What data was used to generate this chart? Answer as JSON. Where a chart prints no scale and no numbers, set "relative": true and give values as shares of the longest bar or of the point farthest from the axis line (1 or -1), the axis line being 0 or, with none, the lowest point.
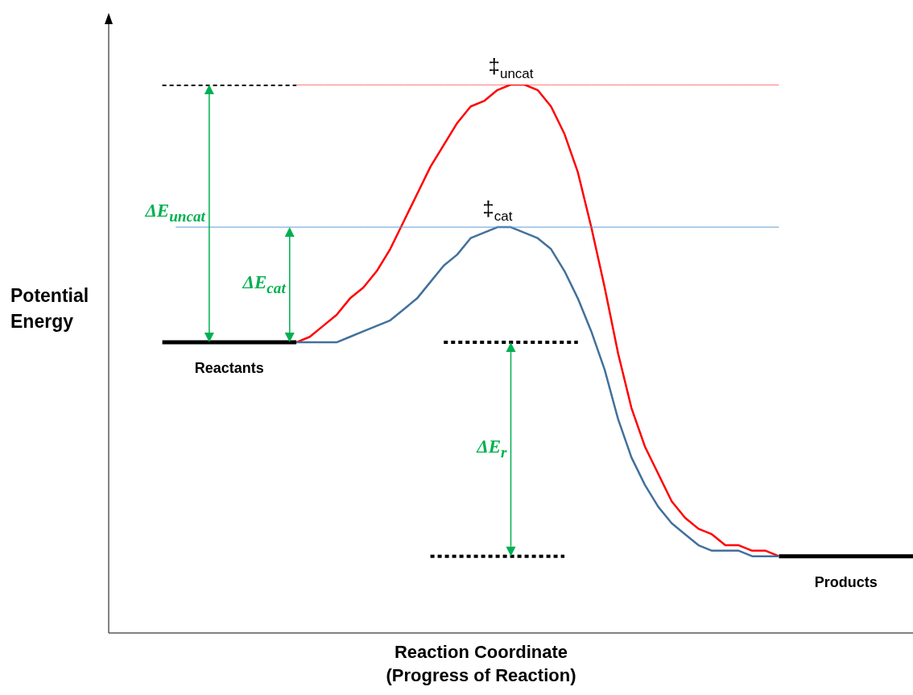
{
  "chart_data": {
    "type": "line",
    "relative": true,
    "xlabel": "Reaction Coordinate (Progress of Reaction)",
    "ylabel": "Potential Energy",
    "annotations": [
      "‡$_{uncat}$",
      "‡$_{cat}$",
      "ΔE$_{uncat}$",
      "ΔE$_{cat}$",
      "ΔE$_{r}$"
    ],
    "categories": [
      null,
      null,
      null,
      null,
      null,
      null,
      null,
      null,
      null,
      null,
      null,
      null,
      null,
      null,
      null,
      null,
      null,
      null,
      null,
      null,
      null,
      null,
      null,
      null,
      null,
      null,
      null,
      null,
      null,
      null,
      null,
      null,
      null,
      null,
      null,
      null,
      null,
      null,
      null,
      null,
      null,
      null,
      null,
      null,
      null,
      null,
      null,
      null,
      null,
      null,
      null,
      null,
      null,
      null,
      null,
      null,
      null,
      null,
      null,
      null,
      null
    ],
    "legend": false,
    "grid": false,
    "marker": "none",
    "line_style": "solid",
    "series": [
      {
        "name": "Reactants",
        "color": "#000000",
        "values": [
          null,
          null,
          null,
          null,
          0.53,
          0.53,
          0.53,
          0.53,
          0.53,
          0.53,
          0.53,
          0.53,
          0.53,
          0.53,
          0.53,
          null,
          null,
          null,
          null,
          null,
          null,
          null,
          null,
          null,
          null,
          null,
          null,
          null,
          null,
          null,
          null,
          null,
          null,
          null,
          null,
          null,
          null,
          null,
          null,
          null,
          null,
          null,
          null,
          null,
          null,
          null,
          null,
          null,
          null,
          null,
          null,
          null,
          null,
          null,
          null,
          null,
          null,
          null,
          null,
          null,
          null
        ]
      },
      {
        "name": "Products",
        "color": "#000000",
        "values": [
          null,
          null,
          null,
          null,
          null,
          null,
          null,
          null,
          null,
          null,
          null,
          null,
          null,
          null,
          null,
          null,
          null,
          null,
          null,
          null,
          null,
          null,
          null,
          null,
          null,
          null,
          null,
          null,
          null,
          null,
          null,
          null,
          null,
          null,
          null,
          null,
          null,
          null,
          null,
          null,
          null,
          null,
          null,
          null,
          null,
          null,
          null,
          null,
          null,
          null,
          0.14,
          0.14,
          0.14,
          0.14,
          0.14,
          0.14,
          0.14,
          0.14,
          0.14,
          0.14,
          0.14
        ]
      },
      {
        "color": "#ff0000",
        "values": [
          null,
          null,
          null,
          null,
          null,
          null,
          null,
          null,
          null,
          null,
          null,
          null,
          null,
          null,
          0.53,
          0.54,
          0.56,
          0.58,
          0.61,
          0.63,
          0.66,
          0.7,
          0.75,
          0.8,
          0.85,
          0.89,
          0.93,
          0.96,
          0.97,
          0.99,
          1,
          1,
          0.99,
          0.96,
          0.91,
          0.84,
          0.74,
          0.63,
          0.51,
          0.41,
          0.34,
          0.29,
          0.24,
          0.21,
          0.19,
          0.18,
          0.16,
          0.16,
          0.15,
          0.15,
          0.14,
          null,
          null,
          null,
          null,
          null,
          null,
          null,
          null,
          null,
          null
        ]
      },
      {
        "color": "#41719c",
        "values": [
          null,
          null,
          null,
          null,
          null,
          null,
          null,
          null,
          null,
          null,
          null,
          null,
          null,
          null,
          0.53,
          0.53,
          0.53,
          0.53,
          0.54,
          0.55,
          0.56,
          0.57,
          0.59,
          0.61,
          0.64,
          0.67,
          0.69,
          0.72,
          0.73,
          0.74,
          0.74,
          0.73,
          0.72,
          0.7,
          0.66,
          0.61,
          0.55,
          0.48,
          0.39,
          0.32,
          0.27,
          0.23,
          0.2,
          0.18,
          0.16,
          0.15,
          0.15,
          0.15,
          0.14,
          0.14,
          0.14,
          null,
          null,
          null,
          null,
          null,
          null,
          null,
          null,
          null,
          null
        ]
      },
      {
        "color": "#ff0000",
        "values": [
          null,
          null,
          null,
          null,
          null,
          null,
          null,
          null,
          null,
          null,
          null,
          null,
          null,
          null,
          1,
          1,
          1,
          1,
          1,
          1,
          1,
          1,
          1,
          1,
          1,
          1,
          1,
          1,
          1,
          1,
          1,
          1,
          1,
          1,
          1,
          1,
          1,
          1,
          1,
          1,
          1,
          1,
          1,
          1,
          1,
          1,
          1,
          1,
          1,
          1,
          1,
          null,
          null,
          null,
          null,
          null,
          null,
          null,
          null,
          null,
          null
        ]
      },
      {
        "color": "#5b9bd5",
        "values": [
          null,
          null,
          null,
          null,
          null,
          0.74,
          0.74,
          0.74,
          0.74,
          0.74,
          0.74,
          0.74,
          0.74,
          0.74,
          0.74,
          0.74,
          0.74,
          0.74,
          0.74,
          0.74,
          0.74,
          0.74,
          0.74,
          0.74,
          0.74,
          0.74,
          0.74,
          0.74,
          0.74,
          0.74,
          0.74,
          0.74,
          0.74,
          0.74,
          0.74,
          0.74,
          0.74,
          0.74,
          0.74,
          0.74,
          0.74,
          0.74,
          0.74,
          0.74,
          0.74,
          0.74,
          0.74,
          0.74,
          0.74,
          0.74,
          0.74,
          null,
          null,
          null,
          null,
          null,
          null,
          null,
          null,
          null,
          null
        ]
      },
      {
        "color": "#000000",
        "line_style": "dotted",
        "values": [
          null,
          null,
          null,
          null,
          1,
          1,
          1,
          1,
          1,
          1,
          1,
          1,
          1,
          1,
          1,
          null,
          null,
          null,
          null,
          null,
          null,
          null,
          null,
          null,
          null,
          null,
          null,
          null,
          null,
          null,
          null,
          null,
          null,
          null,
          null,
          null,
          null,
          null,
          null,
          null,
          null,
          null,
          null,
          null,
          null,
          null,
          null,
          null,
          null,
          null,
          null,
          null,
          null,
          null,
          null,
          null,
          null,
          null,
          null,
          null,
          null
        ]
      },
      {
        "color": "#000000",
        "line_style": "dotted",
        "values": [
          null,
          null,
          null,
          null,
          null,
          null,
          null,
          null,
          null,
          null,
          null,
          null,
          null,
          null,
          null,
          null,
          null,
          null,
          null,
          null,
          null,
          null,
          null,
          null,
          null,
          0.53,
          0.53,
          0.53,
          0.53,
          0.53,
          0.53,
          0.53,
          0.53,
          0.53,
          0.53,
          0.53,
          null,
          null,
          null,
          null,
          null,
          null,
          null,
          null,
          null,
          null,
          null,
          null,
          null,
          null,
          null,
          null,
          null,
          null,
          null,
          null,
          null,
          null,
          null,
          null,
          null
        ]
      },
      {
        "color": "#000000",
        "line_style": "dotted",
        "values": [
          null,
          null,
          null,
          null,
          null,
          null,
          null,
          null,
          null,
          null,
          null,
          null,
          null,
          null,
          null,
          null,
          null,
          null,
          null,
          null,
          null,
          null,
          null,
          null,
          0.14,
          0.14,
          0.14,
          0.14,
          0.14,
          0.14,
          0.14,
          0.14,
          0.14,
          0.14,
          0.14,
          null,
          null,
          null,
          null,
          null,
          null,
          null,
          null,
          null,
          null,
          null,
          null,
          null,
          null,
          null,
          null,
          null,
          null,
          null,
          null,
          null,
          null,
          null,
          null,
          null,
          null
        ]
      }
    ]
  }
}
